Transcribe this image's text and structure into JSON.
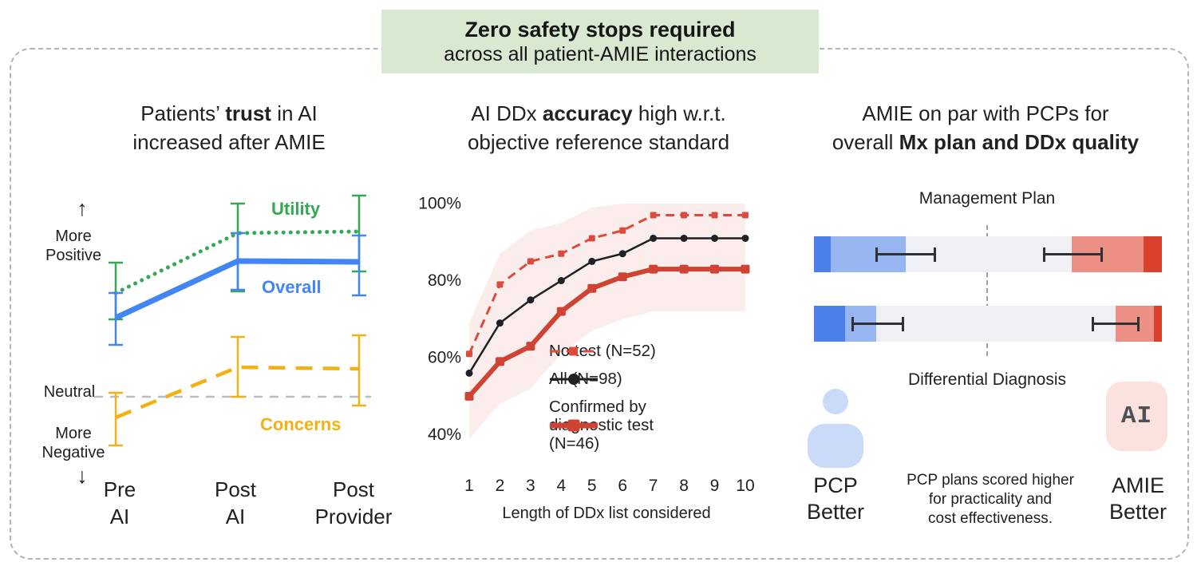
{
  "banner": {
    "line1": "Zero safety stops required",
    "line2": "across all patient-AMIE interactions"
  },
  "panels": {
    "trust": {
      "title_pre": "Patients’ ",
      "title_bold": "trust",
      "title_post": " in AI",
      "title_line2": "increased after AMIE",
      "y_top_arrow": "↑",
      "y_top_line1": "More",
      "y_top_line2": "Positive",
      "y_mid": "Neutral",
      "y_bot_line1": "More",
      "y_bot_line2": "Negative",
      "y_bot_arrow": "↓",
      "xlabels": [
        [
          "Pre",
          "AI"
        ],
        [
          "Post",
          "AI"
        ],
        [
          "Post",
          "Provider"
        ]
      ],
      "series_labels": {
        "utility": "Utility",
        "overall": "Overall",
        "concerns": "Concerns"
      }
    },
    "ddx": {
      "title_pre": "AI DDx ",
      "title_bold": "accuracy",
      "title_post": " high w.r.t.",
      "title_line2": "objective reference standard",
      "legend": [
        [
          "No test (N=52)"
        ],
        [
          "All (N=98)"
        ],
        [
          "Confirmed by",
          "diagnostic test",
          "(N=46)"
        ]
      ]
    },
    "comparison": {
      "title_line1": "AMIE on par with PCPs for",
      "title_line2_pre": "overall ",
      "title_line2_bold": "Mx plan and DDx quality",
      "row1_label": "Management Plan",
      "row2_label": "Differential Diagnosis",
      "left_label_line1": "PCP",
      "left_label_line2": "Better",
      "right_label_line1": "AMIE",
      "right_label_line2": "Better",
      "ai_chip": "AI",
      "note_line1": "PCP plans scored higher",
      "note_line2": "for practicality and",
      "note_line3": "cost effectiveness."
    }
  },
  "chart_data": [
    {
      "type": "line",
      "title": "Patients' trust in AI increased after AMIE",
      "categories": [
        "Pre AI",
        "Post AI",
        "Post Provider"
      ],
      "ylabel": "qualitative scale: More Negative — Neutral — More Positive",
      "neutral_value": 0,
      "series": [
        {
          "name": "Utility",
          "color_key": "green",
          "style": "dotted",
          "values": [
            1.3,
            2.05,
            2.07
          ],
          "err_lo": [
            0.97,
            1.32,
            1.57
          ],
          "err_hi": [
            1.68,
            2.42,
            2.52
          ]
        },
        {
          "name": "Overall",
          "color_key": "blue",
          "style": "solid",
          "values": [
            0.99,
            1.7,
            1.69
          ],
          "err_lo": [
            0.65,
            1.34,
            1.27
          ],
          "err_hi": [
            1.3,
            2.05,
            2.02
          ]
        },
        {
          "name": "Concerns",
          "color_key": "yellow",
          "style": "dashed",
          "values": [
            -0.26,
            0.37,
            0.35
          ],
          "err_lo": [
            -0.61,
            0.0,
            -0.11
          ],
          "err_hi": [
            0.05,
            0.75,
            0.77
          ]
        }
      ]
    },
    {
      "type": "line",
      "title": "AI DDx accuracy high w.r.t. objective reference standard",
      "x": [
        1,
        2,
        3,
        4,
        5,
        6,
        7,
        8,
        9,
        10
      ],
      "xlabel": "Length of DDx list considered",
      "yticks": [
        "100%",
        "80%",
        "60%",
        "40%"
      ],
      "ytick_values": [
        100,
        80,
        60,
        40
      ],
      "ylim": [
        40,
        100
      ],
      "series": [
        {
          "name": "No test (N=52)",
          "color_key": "red_dashed",
          "style": "dashed",
          "marker": "square",
          "values": [
            61,
            79,
            85,
            87,
            91,
            93,
            97,
            97,
            97,
            97
          ]
        },
        {
          "name": "All (N=98)",
          "color_key": "black_line",
          "style": "solid",
          "marker": "circle",
          "values": [
            56,
            69,
            75,
            80,
            85,
            87,
            91,
            91,
            91,
            91
          ]
        },
        {
          "name": "Confirmed by diagnostic test (N=46)",
          "color_key": "red_solid",
          "style": "solid-thick",
          "marker": "square-lg",
          "values": [
            50,
            59,
            63,
            72,
            78,
            81,
            83,
            83,
            83,
            83
          ]
        }
      ],
      "band": {
        "upper": [
          69,
          87,
          93,
          95,
          99,
          100,
          100,
          100,
          100,
          100
        ],
        "lower": [
          39,
          48,
          52,
          61,
          67,
          70,
          72,
          72,
          72,
          72
        ]
      }
    },
    {
      "type": "diverging-bar",
      "title": "AMIE on par with PCPs for overall Mx plan and DDx quality",
      "axis_left": "PCP Better",
      "axis_right": "AMIE Better",
      "rows": [
        {
          "label": "Management Plan",
          "segments_pct": [
            4.8,
            21.6,
            47.7,
            20.6,
            5.3
          ],
          "err_left_pct": [
            17.7,
            35.1
          ],
          "err_right_pct": [
            65.8,
            83.0
          ]
        },
        {
          "label": "Differential Diagnosis",
          "segments_pct": [
            8.9,
            8.9,
            68.8,
            11.0,
            2.4
          ],
          "err_left_pct": [
            10.8,
            25.9
          ],
          "err_right_pct": [
            79.8,
            93.6
          ]
        }
      ],
      "note": "PCP plans scored higher for practicality and cost effectiveness."
    }
  ],
  "colors": {
    "banner_bg": "#d9e8d1",
    "text_dark": "#202124",
    "border_gray": "#b4b4b4",
    "green": "#34a853",
    "blue": "#4285f4",
    "yellow": "#f2b115",
    "neutral_gray": "#b8bcc4",
    "red_dashed": "#dd4b3c",
    "red_solid": "#cf4334",
    "black_line": "#202124",
    "band_pink": "#f5dcd7",
    "err_black": "#303134",
    "divider_gray": "#9aa0a6",
    "person_blue": "#c9dbf8",
    "chip_pink": "#fce2df",
    "chip_text": "#4d5156",
    "bar_colors": [
      "#4a80e8",
      "#97b5f0",
      "#eef0f3",
      "#ec9086",
      "#d9402e"
    ]
  }
}
